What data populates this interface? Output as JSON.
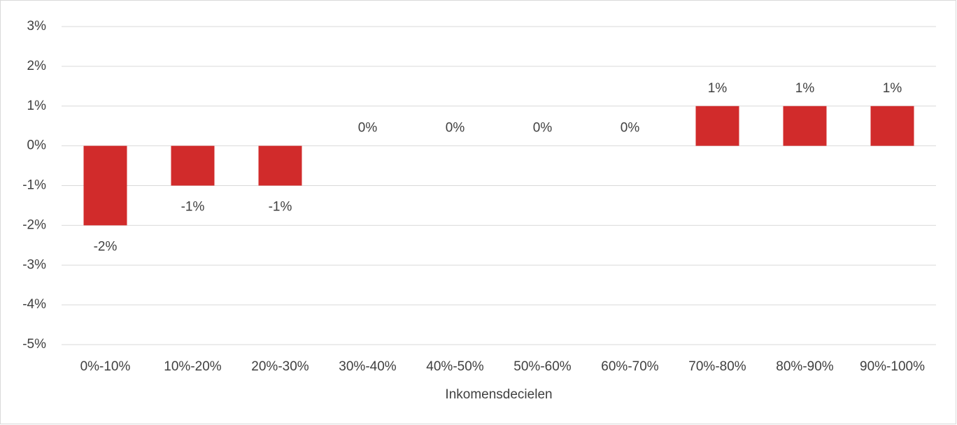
{
  "chart_data": {
    "type": "bar",
    "xlabel": "Inkomensdecielen",
    "categories": [
      "0%-10%",
      "10%-20%",
      "20%-30%",
      "30%-40%",
      "40%-50%",
      "50%-60%",
      "60%-70%",
      "70%-80%",
      "80%-90%",
      "90%-100%"
    ],
    "values": [
      -2,
      -1,
      -1,
      0,
      0,
      0,
      0,
      1,
      1,
      1
    ],
    "value_labels": [
      "-2%",
      "-1%",
      "-1%",
      "0%",
      "0%",
      "0%",
      "0%",
      "1%",
      "1%",
      "1%"
    ],
    "color": "#d12b2b",
    "ylim": [
      -5,
      3
    ],
    "yticks": [
      {
        "value": -5,
        "label": "-5%"
      },
      {
        "value": -4,
        "label": "-4%"
      },
      {
        "value": -3,
        "label": "-3%"
      },
      {
        "value": -2,
        "label": "-2%"
      },
      {
        "value": -1,
        "label": "-1%"
      },
      {
        "value": 0,
        "label": "0%"
      },
      {
        "value": 1,
        "label": "1%"
      },
      {
        "value": 2,
        "label": "2%"
      },
      {
        "value": 3,
        "label": "3%"
      }
    ],
    "grid": true
  }
}
